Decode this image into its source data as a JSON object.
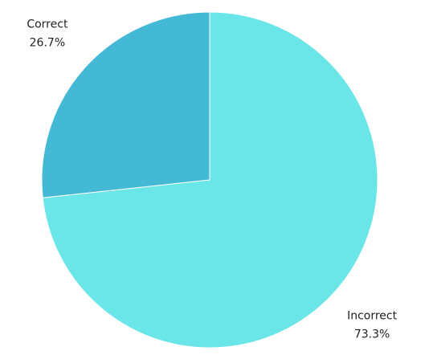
{
  "chart_data": {
    "type": "pie",
    "categories": [
      "Incorrect",
      "Correct"
    ],
    "values": [
      73.3,
      26.7
    ],
    "value_labels": [
      "73.3%",
      "26.7%"
    ],
    "colors": [
      "#6ae5e8",
      "#44b9d6"
    ]
  }
}
